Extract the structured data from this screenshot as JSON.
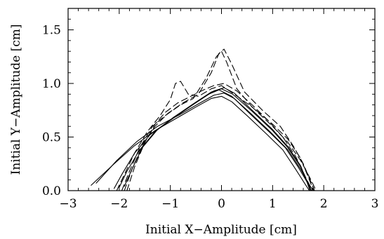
{
  "chart_data": {
    "type": "line",
    "xlabel": "Initial X−Amplitude [cm]",
    "ylabel": "Initial Y−Amplitude [cm]",
    "xlim": [
      -3,
      3
    ],
    "ylim": [
      0,
      1.7
    ],
    "xticks": [
      {
        "value": -3,
        "label": "−3"
      },
      {
        "value": -2,
        "label": "−2"
      },
      {
        "value": -1,
        "label": "−1"
      },
      {
        "value": 0,
        "label": "0"
      },
      {
        "value": 1,
        "label": "1"
      },
      {
        "value": 2,
        "label": "2"
      },
      {
        "value": 3,
        "label": "3"
      }
    ],
    "yticks": [
      {
        "value": 0.0,
        "label": "0.0"
      },
      {
        "value": 0.5,
        "label": "0.5"
      },
      {
        "value": 1.0,
        "label": "1.0"
      },
      {
        "value": 1.5,
        "label": "1.5"
      }
    ],
    "grid": false,
    "series": [
      {
        "style": "solid",
        "x": [
          -2.55,
          -2.1,
          -1.7,
          -1.3,
          -0.9,
          -0.5,
          -0.2,
          0.0,
          0.2,
          0.5,
          0.9,
          1.2,
          1.45,
          1.65,
          1.72
        ],
        "y": [
          0.05,
          0.25,
          0.42,
          0.56,
          0.67,
          0.78,
          0.86,
          0.88,
          0.83,
          0.7,
          0.52,
          0.38,
          0.2,
          0.05,
          0.0
        ]
      },
      {
        "style": "solid",
        "x": [
          -2.45,
          -2.05,
          -1.65,
          -1.25,
          -0.85,
          -0.45,
          -0.15,
          0.05,
          0.25,
          0.55,
          0.95,
          1.25,
          1.5,
          1.7,
          1.76
        ],
        "y": [
          0.07,
          0.28,
          0.46,
          0.6,
          0.7,
          0.81,
          0.89,
          0.91,
          0.86,
          0.72,
          0.54,
          0.4,
          0.22,
          0.06,
          0.0
        ]
      },
      {
        "style": "solid",
        "x": [
          -2.1,
          -1.95,
          -1.7,
          -1.4,
          -1.0,
          -0.6,
          -0.25,
          -0.05,
          0.2,
          0.55,
          0.95,
          1.3,
          1.55,
          1.72,
          1.8
        ],
        "y": [
          0.02,
          0.15,
          0.35,
          0.52,
          0.66,
          0.79,
          0.9,
          0.94,
          0.88,
          0.73,
          0.55,
          0.38,
          0.2,
          0.05,
          0.0
        ]
      },
      {
        "style": "solid",
        "x": [
          -2.0,
          -1.85,
          -1.6,
          -1.3,
          -0.95,
          -0.55,
          -0.2,
          0.0,
          0.22,
          0.6,
          1.0,
          1.3,
          1.55,
          1.7,
          1.75
        ],
        "y": [
          0.03,
          0.18,
          0.38,
          0.55,
          0.68,
          0.81,
          0.92,
          0.95,
          0.9,
          0.74,
          0.56,
          0.4,
          0.22,
          0.06,
          0.0
        ]
      },
      {
        "style": "solid",
        "x": [
          -1.9,
          -1.75,
          -1.55,
          -1.25,
          -0.9,
          -0.5,
          -0.15,
          0.05,
          0.25,
          0.6,
          1.0,
          1.3,
          1.55,
          1.68,
          1.73
        ],
        "y": [
          0.04,
          0.2,
          0.4,
          0.57,
          0.69,
          0.82,
          0.93,
          0.96,
          0.91,
          0.75,
          0.57,
          0.41,
          0.23,
          0.07,
          0.0
        ]
      },
      {
        "style": "dashed",
        "x": [
          -2.05,
          -1.9,
          -1.7,
          -1.45,
          -1.2,
          -1.0,
          -0.9,
          -0.8,
          -0.65,
          -0.45,
          -0.2,
          0.0,
          0.25,
          0.6,
          1.0,
          1.3,
          1.55,
          1.75,
          1.85
        ],
        "y": [
          0.0,
          0.15,
          0.35,
          0.55,
          0.7,
          0.85,
          1.0,
          1.02,
          0.9,
          0.88,
          0.95,
          0.98,
          0.9,
          0.78,
          0.6,
          0.45,
          0.28,
          0.1,
          0.0
        ]
      },
      {
        "style": "dashed",
        "x": [
          -1.95,
          -1.8,
          -1.6,
          -1.35,
          -1.1,
          -0.8,
          -0.55,
          -0.3,
          -0.1,
          0.0,
          0.1,
          0.3,
          0.6,
          1.0,
          1.3,
          1.55,
          1.72,
          1.8
        ],
        "y": [
          0.0,
          0.18,
          0.4,
          0.6,
          0.7,
          0.8,
          0.86,
          1.05,
          1.25,
          1.3,
          1.2,
          0.95,
          0.78,
          0.62,
          0.48,
          0.3,
          0.1,
          0.0
        ]
      },
      {
        "style": "dashed",
        "x": [
          -1.9,
          -1.75,
          -1.55,
          -1.3,
          -1.05,
          -0.75,
          -0.45,
          -0.2,
          -0.05,
          0.05,
          0.2,
          0.45,
          0.8,
          1.15,
          1.4,
          1.6,
          1.75,
          1.82
        ],
        "y": [
          0.0,
          0.2,
          0.42,
          0.6,
          0.72,
          0.82,
          0.9,
          1.1,
          1.28,
          1.32,
          1.18,
          0.92,
          0.75,
          0.6,
          0.42,
          0.25,
          0.08,
          0.0
        ]
      },
      {
        "style": "dashed",
        "x": [
          -1.85,
          -1.7,
          -1.5,
          -1.3,
          -1.1,
          -0.85,
          -0.6,
          -0.35,
          -0.15,
          0.05,
          0.3,
          0.6,
          0.9,
          1.2,
          1.45,
          1.65,
          1.78
        ],
        "y": [
          0.0,
          0.22,
          0.45,
          0.62,
          0.73,
          0.82,
          0.88,
          0.94,
          0.98,
          1.0,
          0.93,
          0.8,
          0.66,
          0.5,
          0.32,
          0.12,
          0.0
        ]
      }
    ]
  }
}
